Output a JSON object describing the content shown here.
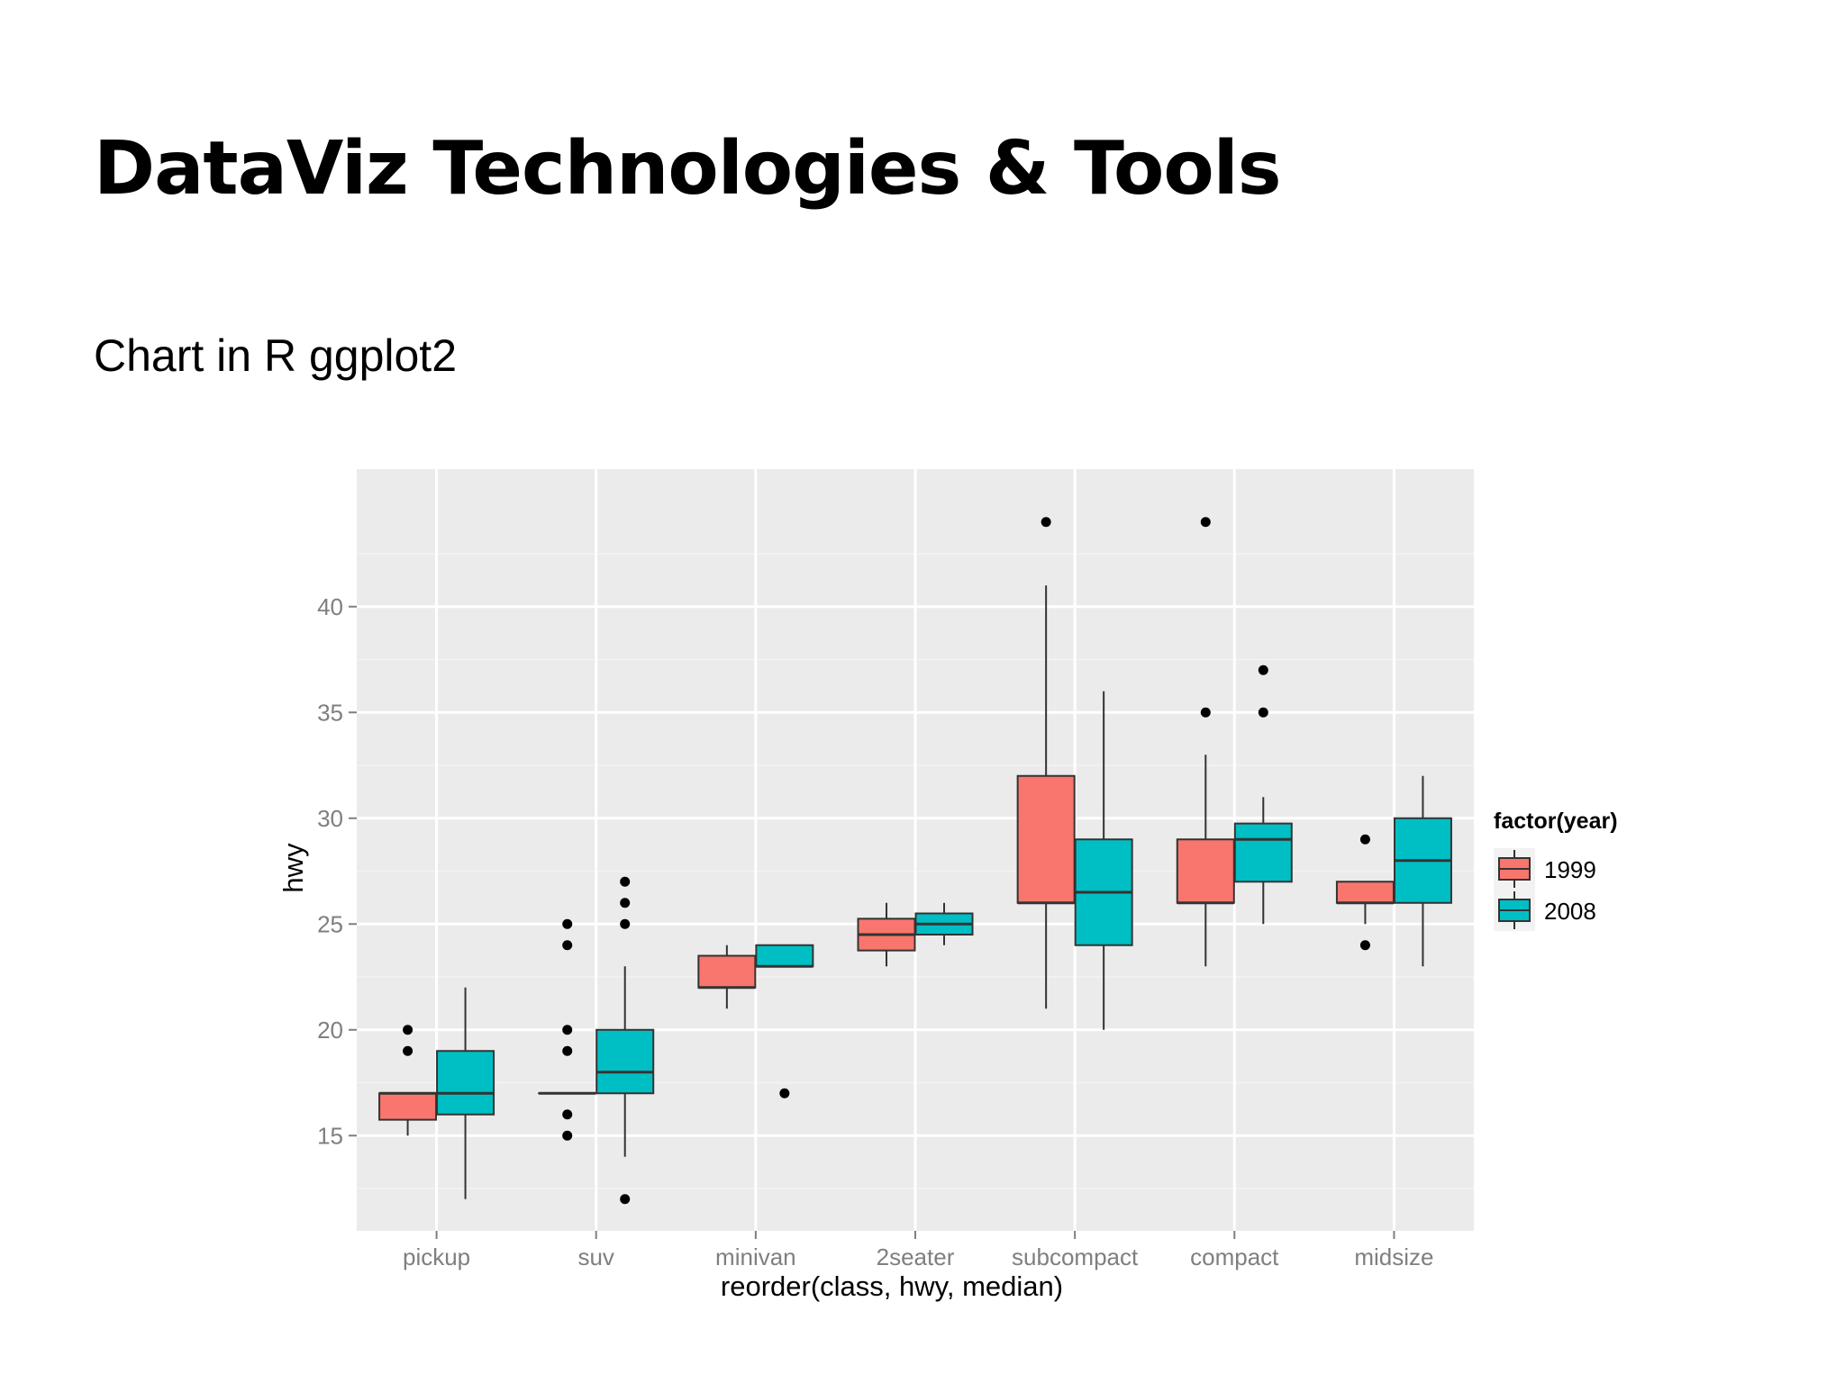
{
  "slide": {
    "title": "DataViz Technologies & Tools",
    "subtitle": "Chart in R ggplot2"
  },
  "chart_data": {
    "type": "boxplot",
    "xlabel": "reorder(class, hwy, median)",
    "ylabel": "hwy",
    "ylim": [
      10.5,
      46.5
    ],
    "yticks": [
      15,
      20,
      25,
      30,
      35,
      40
    ],
    "grid": true,
    "legend_title": "factor(year)",
    "legend_position": "right",
    "categories": [
      "pickup",
      "suv",
      "minivan",
      "2seater",
      "subcompact",
      "compact",
      "midsize"
    ],
    "series": [
      {
        "name": "1999",
        "color": "#F8766D",
        "boxes": [
          {
            "category": "pickup",
            "whisker_low": 15,
            "q1": 15.75,
            "median": 17,
            "q3": 17,
            "whisker_high": 17,
            "outliers": [
              19,
              20
            ]
          },
          {
            "category": "suv",
            "whisker_low": 17,
            "q1": 17,
            "median": 17,
            "q3": 17,
            "whisker_high": 17,
            "outliers": [
              15,
              16,
              19,
              20,
              24,
              25
            ]
          },
          {
            "category": "minivan",
            "whisker_low": 21,
            "q1": 22,
            "median": 22,
            "q3": 23.5,
            "whisker_high": 24,
            "outliers": []
          },
          {
            "category": "2seater",
            "whisker_low": 23,
            "q1": 23.75,
            "median": 24.5,
            "q3": 25.25,
            "whisker_high": 26,
            "outliers": []
          },
          {
            "category": "subcompact",
            "whisker_low": 21,
            "q1": 26,
            "median": 26,
            "q3": 32,
            "whisker_high": 41,
            "outliers": [
              44
            ]
          },
          {
            "category": "compact",
            "whisker_low": 23,
            "q1": 26,
            "median": 26,
            "q3": 29,
            "whisker_high": 33,
            "outliers": [
              35,
              44
            ]
          },
          {
            "category": "midsize",
            "whisker_low": 25,
            "q1": 26,
            "median": 26,
            "q3": 27,
            "whisker_high": 27,
            "outliers": [
              24,
              29
            ]
          }
        ]
      },
      {
        "name": "2008",
        "color": "#00BFC4",
        "boxes": [
          {
            "category": "pickup",
            "whisker_low": 12,
            "q1": 16,
            "median": 17,
            "q3": 19,
            "whisker_high": 22,
            "outliers": []
          },
          {
            "category": "suv",
            "whisker_low": 14,
            "q1": 17,
            "median": 18,
            "q3": 20,
            "whisker_high": 23,
            "outliers": [
              12,
              25,
              26,
              27
            ]
          },
          {
            "category": "minivan",
            "whisker_low": 23,
            "q1": 23,
            "median": 23,
            "q3": 24,
            "whisker_high": 24,
            "outliers": [
              17
            ]
          },
          {
            "category": "2seater",
            "whisker_low": 24,
            "q1": 24.5,
            "median": 25,
            "q3": 25.5,
            "whisker_high": 26,
            "outliers": []
          },
          {
            "category": "subcompact",
            "whisker_low": 20,
            "q1": 24,
            "median": 26.5,
            "q3": 29,
            "whisker_high": 36,
            "outliers": []
          },
          {
            "category": "compact",
            "whisker_low": 25,
            "q1": 27,
            "median": 29,
            "q3": 29.75,
            "whisker_high": 31,
            "outliers": [
              35,
              37
            ]
          },
          {
            "category": "midsize",
            "whisker_low": 23,
            "q1": 26,
            "median": 28,
            "q3": 30,
            "whisker_high": 32,
            "outliers": []
          }
        ]
      }
    ]
  }
}
